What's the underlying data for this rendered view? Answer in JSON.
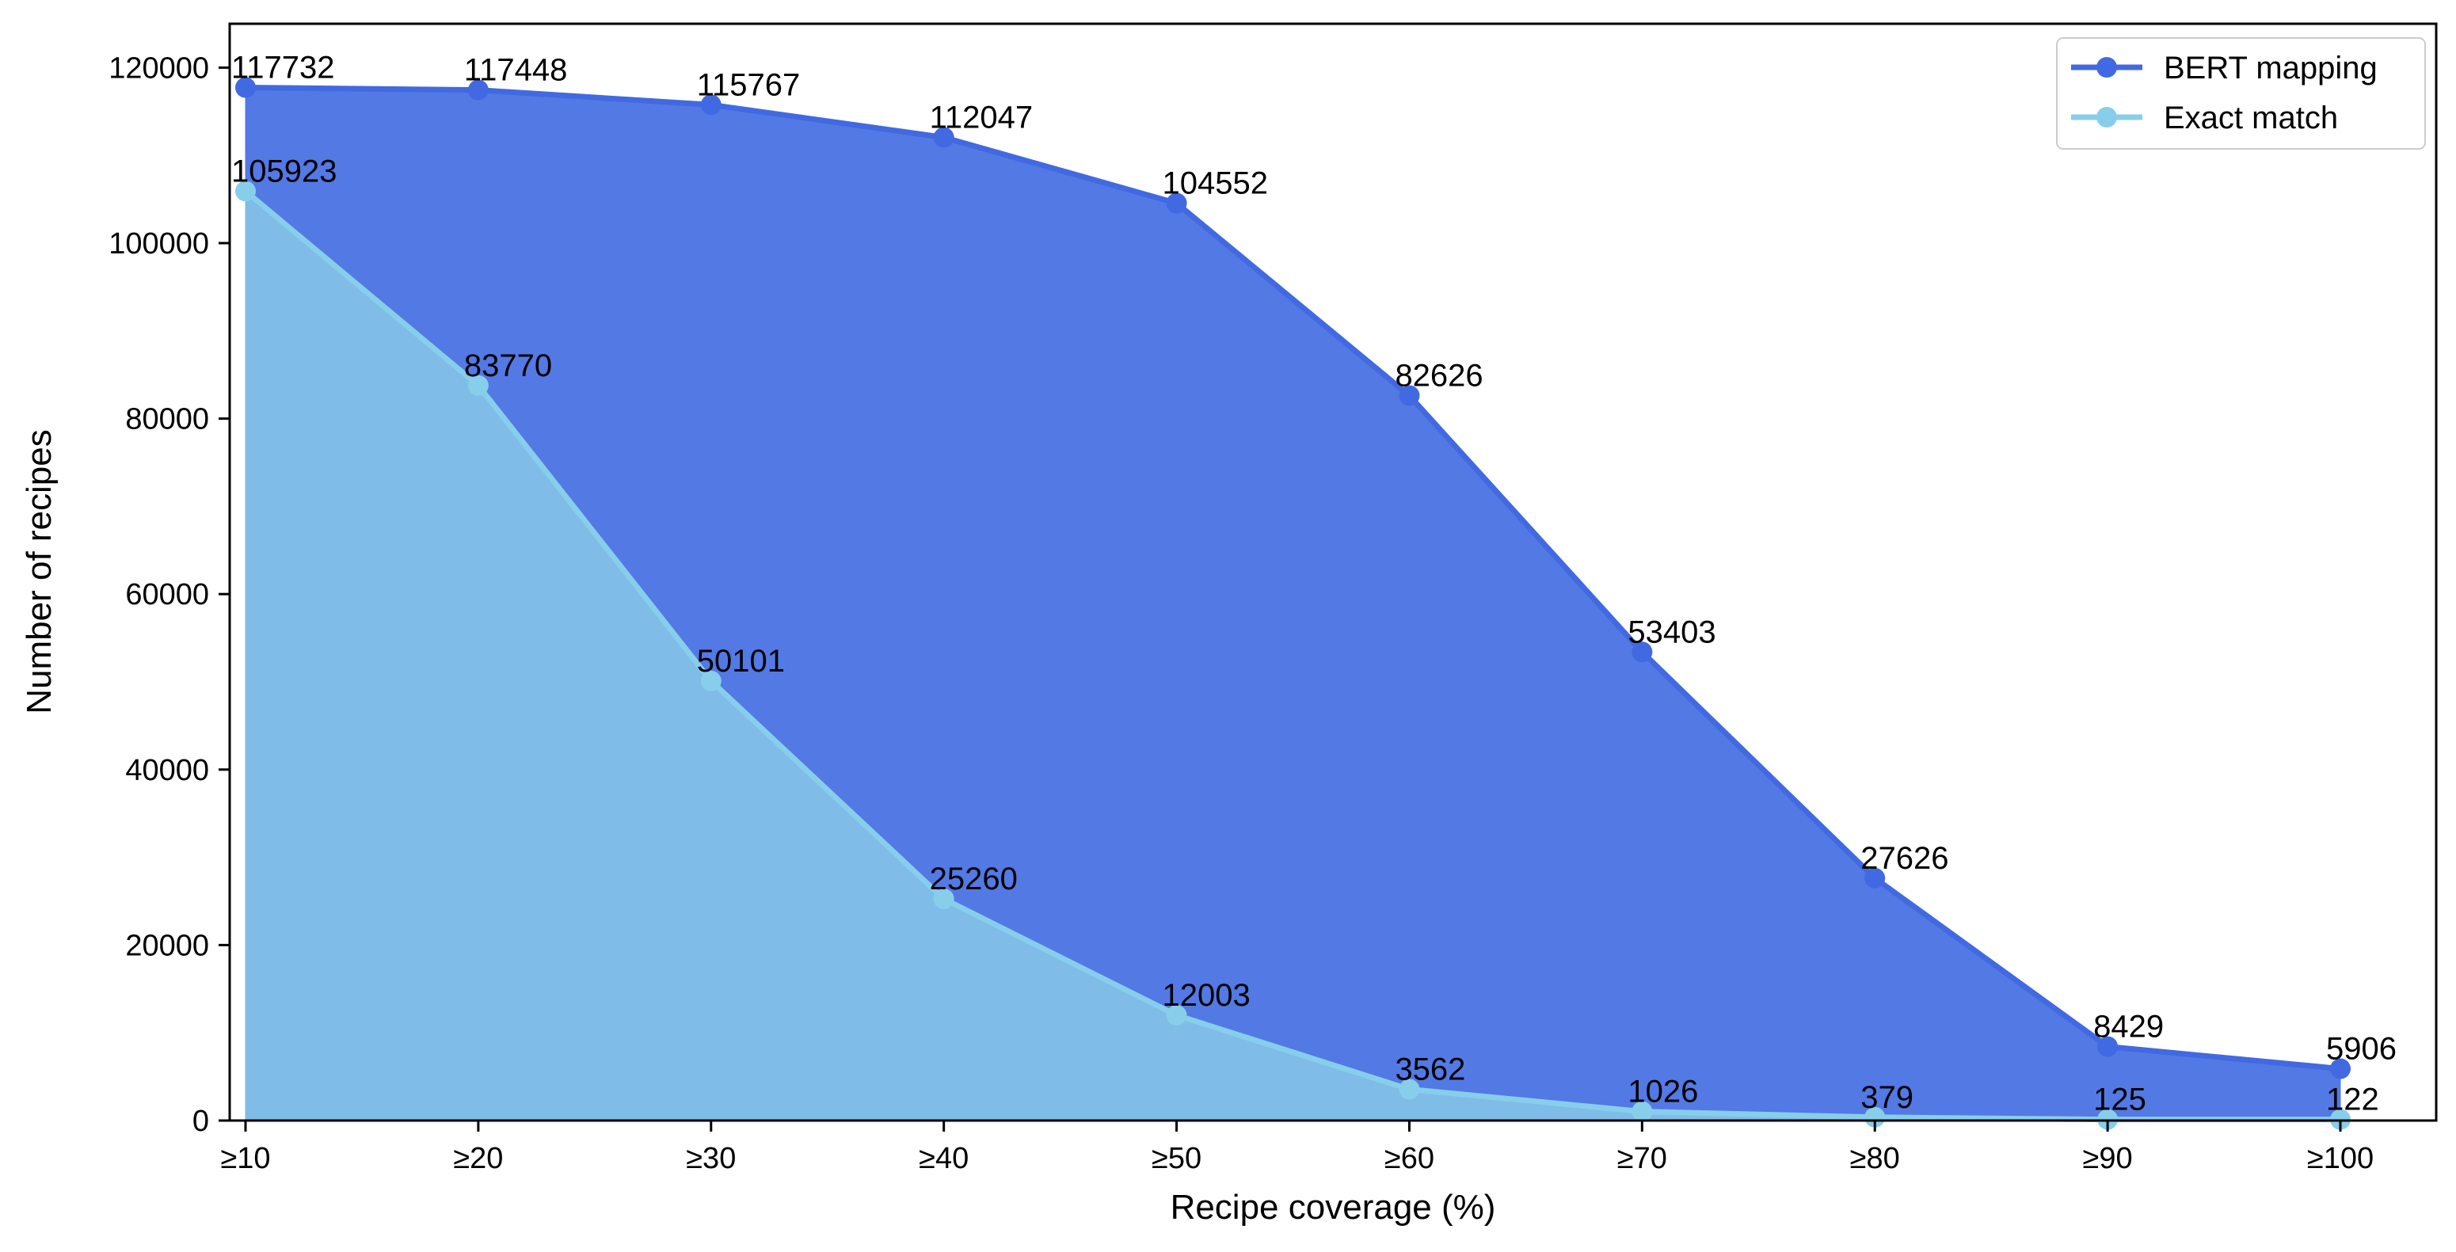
{
  "chart_data": {
    "type": "area",
    "title": "",
    "xlabel": "Recipe coverage (%)",
    "ylabel": "Number of recipes",
    "categories": [
      "≥10",
      "≥20",
      "≥30",
      "≥40",
      "≥50",
      "≥60",
      "≥70",
      "≥80",
      "≥90",
      "≥100"
    ],
    "ylim": [
      0,
      125000
    ],
    "yticks": [
      0,
      20000,
      40000,
      60000,
      80000,
      100000,
      120000
    ],
    "grid": false,
    "legend": "top-right",
    "series": [
      {
        "name": "BERT mapping",
        "values": [
          117732,
          117448,
          115767,
          112047,
          104552,
          82626,
          53403,
          27626,
          8429,
          5906
        ],
        "line_color": "#4169e1",
        "fill_color": "#5379e4"
      },
      {
        "name": "Exact match",
        "values": [
          105923,
          83770,
          50101,
          25260,
          12003,
          3562,
          1026,
          379,
          125,
          122
        ],
        "line_color": "#87ceeb",
        "fill_color": "#7fbce8"
      }
    ]
  }
}
